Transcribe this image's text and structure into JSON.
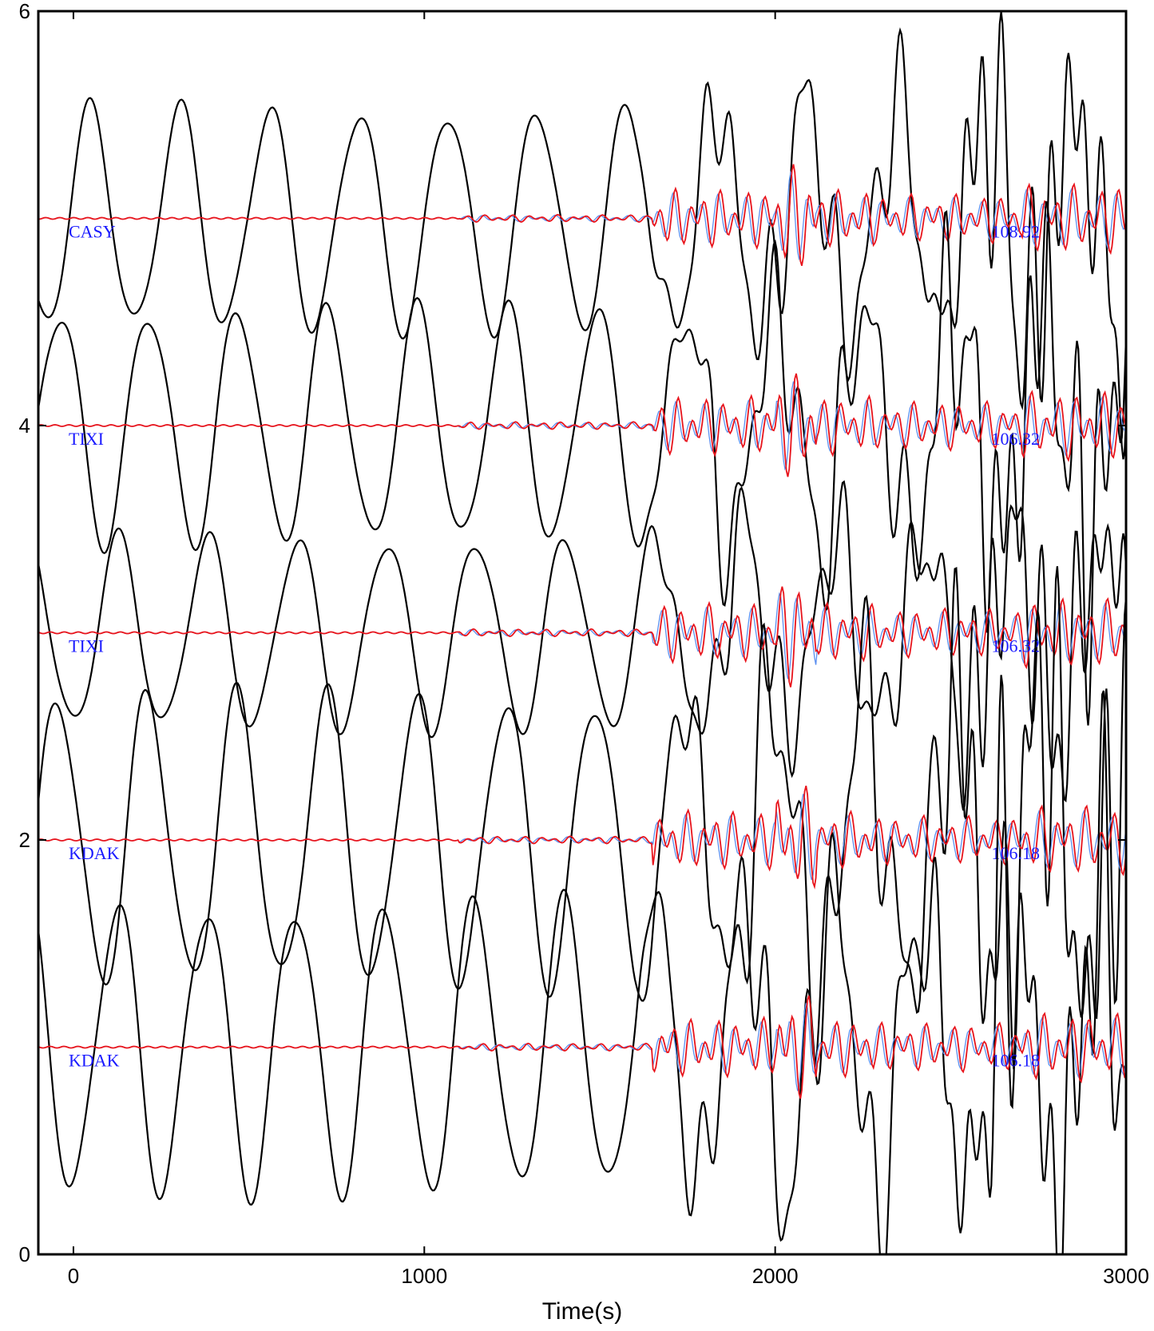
{
  "chart_data": {
    "type": "line",
    "title": "",
    "xlabel": "Time(s)",
    "ylabel": "",
    "xlim": [
      -100,
      3000
    ],
    "ylim": [
      0,
      6
    ],
    "x_ticks": [
      0,
      1000,
      2000,
      3000
    ],
    "y_ticks": [
      0,
      2,
      4,
      6
    ],
    "grid": false,
    "colors": {
      "observed": "#000000",
      "synthetic_red": "#e8141c",
      "synthetic_blue": "#5b8ff0",
      "label_text": "#1a1aff"
    },
    "traces": [
      {
        "station": "CASY",
        "offset": 5.0,
        "value": "108.92",
        "obs_amp": 0.52,
        "seed": 3
      },
      {
        "station": "TIXI",
        "offset": 4.0,
        "value": "106.32",
        "obs_amp": 0.55,
        "seed": 7
      },
      {
        "station": "TIXI",
        "offset": 3.0,
        "value": "106.32",
        "obs_amp": 0.45,
        "seed": 11
      },
      {
        "station": "KDAK",
        "offset": 2.0,
        "value": "106.18",
        "obs_amp": 0.68,
        "seed": 13
      },
      {
        "station": "KDAK",
        "offset": 1.0,
        "value": "106.18",
        "obs_amp": 0.68,
        "seed": 17
      }
    ]
  }
}
